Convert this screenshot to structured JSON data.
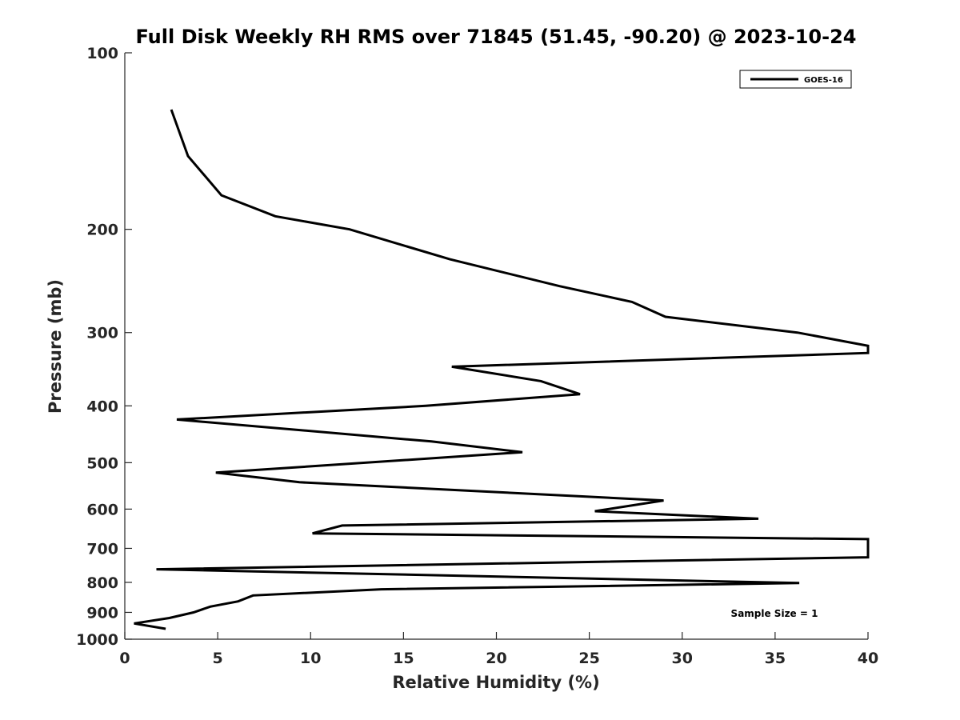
{
  "chart_data": {
    "type": "line",
    "title": "Full Disk Weekly RH RMS over 71845 (51.45, -90.20) @ 2023-10-24",
    "xlabel": "Relative Humidity (%)",
    "ylabel": "Pressure (mb)",
    "xlim": [
      0,
      40
    ],
    "ylim": [
      100,
      1000
    ],
    "yscale": "log",
    "yreversed": true,
    "grid": false,
    "legend_position": "top-right",
    "x_ticks": [
      "0",
      "5",
      "10",
      "15",
      "20",
      "25",
      "30",
      "35",
      "40"
    ],
    "y_ticks": [
      "100",
      "200",
      "300",
      "400",
      "500",
      "600",
      "700",
      "800",
      "900",
      "1000"
    ],
    "annotation": "Sample Size = 1",
    "series": [
      {
        "name": "GOES-16",
        "color": "#000000",
        "points": [
          {
            "x": 2.5,
            "p": 125
          },
          {
            "x": 3.4,
            "p": 150
          },
          {
            "x": 5.2,
            "p": 175
          },
          {
            "x": 8.1,
            "p": 190
          },
          {
            "x": 12.1,
            "p": 200
          },
          {
            "x": 17.5,
            "p": 225
          },
          {
            "x": 23.4,
            "p": 250
          },
          {
            "x": 27.3,
            "p": 266
          },
          {
            "x": 29.1,
            "p": 282
          },
          {
            "x": 36.2,
            "p": 300
          },
          {
            "x": 40.0,
            "p": 316
          },
          {
            "x": 40.0,
            "p": 325
          },
          {
            "x": 17.6,
            "p": 343
          },
          {
            "x": 22.4,
            "p": 363
          },
          {
            "x": 24.5,
            "p": 382
          },
          {
            "x": 16.2,
            "p": 400
          },
          {
            "x": 2.8,
            "p": 422
          },
          {
            "x": 16.5,
            "p": 460
          },
          {
            "x": 21.4,
            "p": 480
          },
          {
            "x": 4.9,
            "p": 520
          },
          {
            "x": 9.4,
            "p": 540
          },
          {
            "x": 29.0,
            "p": 580
          },
          {
            "x": 25.3,
            "p": 605
          },
          {
            "x": 34.1,
            "p": 623
          },
          {
            "x": 11.7,
            "p": 640
          },
          {
            "x": 10.1,
            "p": 660
          },
          {
            "x": 40.0,
            "p": 675
          },
          {
            "x": 40.0,
            "p": 725
          },
          {
            "x": 1.7,
            "p": 760
          },
          {
            "x": 36.3,
            "p": 802
          },
          {
            "x": 13.8,
            "p": 822
          },
          {
            "x": 6.9,
            "p": 842
          },
          {
            "x": 6.1,
            "p": 862
          },
          {
            "x": 4.6,
            "p": 880
          },
          {
            "x": 3.7,
            "p": 900
          },
          {
            "x": 2.4,
            "p": 920
          },
          {
            "x": 0.5,
            "p": 940
          },
          {
            "x": 2.2,
            "p": 960
          }
        ]
      }
    ]
  }
}
